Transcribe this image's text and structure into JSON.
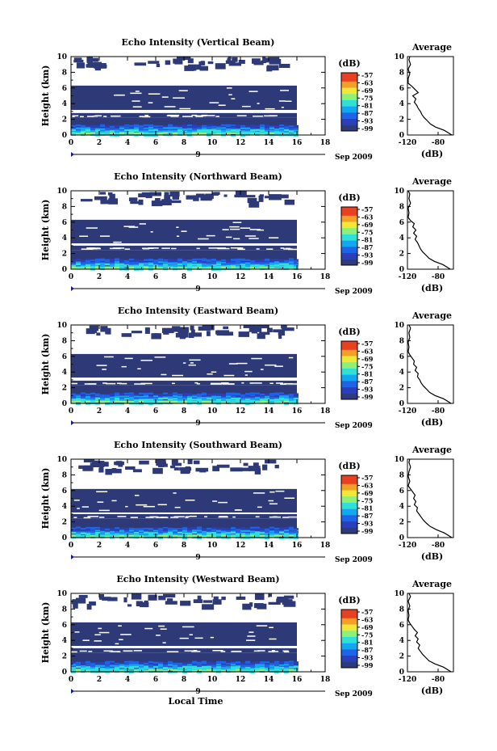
{
  "chart_data": [
    {
      "type": "heatmap",
      "title": "Echo Intensity (Vertical Beam)",
      "ylabel": "Height (km)",
      "xlim": [
        0,
        18
      ],
      "ylim": [
        0,
        10
      ],
      "xticks": [
        0,
        2,
        4,
        6,
        8,
        10,
        12,
        14,
        16,
        18
      ],
      "yticks": [
        0,
        2,
        4,
        6,
        8,
        10
      ],
      "date_label": "Sep 2009",
      "date_day": "9",
      "data_end_hour": 16,
      "colorbar": {
        "unit": "(dB)",
        "ticks": [
          -57,
          -63,
          -69,
          -75,
          -81,
          -87,
          -93,
          -99
        ]
      },
      "layers": [
        {
          "from_km": 0,
          "to_km": 2.2,
          "level": "strong"
        },
        {
          "from_km": 2.2,
          "to_km": 2.8,
          "level": "weak"
        },
        {
          "from_km": 3.2,
          "to_km": 6.3,
          "level": "weak"
        },
        {
          "from_km": 8.3,
          "to_km": 10,
          "level": "sparse"
        }
      ],
      "average": {
        "title": "Average",
        "xlabel": "(dB)",
        "xlim": [
          -120,
          -60
        ],
        "xticks": [
          -120,
          -80
        ],
        "profile": [
          [
            -62,
            0.0
          ],
          [
            -72,
            0.6
          ],
          [
            -83,
            1.0
          ],
          [
            -90,
            1.4
          ],
          [
            -94,
            1.8
          ],
          [
            -98,
            2.2
          ],
          [
            -101,
            2.6
          ],
          [
            -103,
            3.0
          ],
          [
            -106,
            3.4
          ],
          [
            -108,
            3.8
          ],
          [
            -111,
            4.2
          ],
          [
            -109,
            4.6
          ],
          [
            -113,
            5.0
          ],
          [
            -106,
            5.4
          ],
          [
            -110,
            5.8
          ],
          [
            -114,
            6.2
          ],
          [
            -119,
            6.6
          ],
          [
            -119,
            7.2
          ],
          [
            -117,
            7.8
          ],
          [
            -119,
            8.4
          ],
          [
            -116,
            9.0
          ],
          [
            -118,
            9.6
          ],
          [
            -117,
            10.0
          ]
        ]
      }
    },
    {
      "type": "heatmap",
      "title": "Echo Intensity (Northward Beam)",
      "ylabel": "Height (km)",
      "xlim": [
        0,
        18
      ],
      "ylim": [
        0,
        10
      ],
      "xticks": [
        0,
        2,
        4,
        6,
        8,
        10,
        12,
        14,
        16,
        18
      ],
      "yticks": [
        0,
        2,
        4,
        6,
        8,
        10
      ],
      "date_label": "Sep 2009",
      "date_day": "9",
      "data_end_hour": 16,
      "colorbar": {
        "unit": "(dB)",
        "ticks": [
          -57,
          -63,
          -69,
          -75,
          -81,
          -87,
          -93,
          -99
        ]
      },
      "layers": [
        {
          "from_km": 0,
          "to_km": 2.4,
          "level": "strong"
        },
        {
          "from_km": 2.4,
          "to_km": 3.0,
          "level": "weak"
        },
        {
          "from_km": 3.3,
          "to_km": 6.3,
          "level": "weak"
        },
        {
          "from_km": 8.2,
          "to_km": 10,
          "level": "sparse"
        }
      ],
      "average": {
        "title": "Average",
        "xlabel": "(dB)",
        "xlim": [
          -120,
          -60
        ],
        "xticks": [
          -120,
          -80
        ],
        "profile": [
          [
            -64,
            0.0
          ],
          [
            -74,
            0.6
          ],
          [
            -85,
            1.0
          ],
          [
            -92,
            1.4
          ],
          [
            -96,
            1.8
          ],
          [
            -100,
            2.2
          ],
          [
            -103,
            2.6
          ],
          [
            -105,
            3.0
          ],
          [
            -107,
            3.4
          ],
          [
            -110,
            3.8
          ],
          [
            -108,
            4.2
          ],
          [
            -112,
            4.6
          ],
          [
            -109,
            5.0
          ],
          [
            -113,
            5.4
          ],
          [
            -111,
            5.8
          ],
          [
            -116,
            6.2
          ],
          [
            -119,
            6.6
          ],
          [
            -118,
            7.2
          ],
          [
            -119,
            7.8
          ],
          [
            -116,
            8.4
          ],
          [
            -118,
            9.0
          ],
          [
            -117,
            9.6
          ],
          [
            -119,
            10.0
          ]
        ]
      }
    },
    {
      "type": "heatmap",
      "title": "Echo Intensity (Eastward Beam)",
      "ylabel": "Height (km)",
      "xlim": [
        0,
        18
      ],
      "ylim": [
        0,
        10
      ],
      "xticks": [
        0,
        2,
        4,
        6,
        8,
        10,
        12,
        14,
        16,
        18
      ],
      "yticks": [
        0,
        2,
        4,
        6,
        8,
        10
      ],
      "date_label": "Sep 2009",
      "date_day": "9",
      "data_end_hour": 16,
      "colorbar": {
        "unit": "(dB)",
        "ticks": [
          -57,
          -63,
          -69,
          -75,
          -81,
          -87,
          -93,
          -99
        ]
      },
      "layers": [
        {
          "from_km": 0,
          "to_km": 2.3,
          "level": "strong"
        },
        {
          "from_km": 2.3,
          "to_km": 2.9,
          "level": "weak"
        },
        {
          "from_km": 3.3,
          "to_km": 6.3,
          "level": "weak"
        },
        {
          "from_km": 8.5,
          "to_km": 10,
          "level": "sparse"
        }
      ],
      "average": {
        "title": "Average",
        "xlabel": "(dB)",
        "xlim": [
          -120,
          -60
        ],
        "xticks": [
          -120,
          -80
        ],
        "profile": [
          [
            -63,
            0.0
          ],
          [
            -73,
            0.6
          ],
          [
            -84,
            1.0
          ],
          [
            -91,
            1.4
          ],
          [
            -95,
            1.8
          ],
          [
            -99,
            2.2
          ],
          [
            -102,
            2.6
          ],
          [
            -104,
            3.0
          ],
          [
            -107,
            3.4
          ],
          [
            -106,
            3.8
          ],
          [
            -110,
            4.2
          ],
          [
            -108,
            4.6
          ],
          [
            -112,
            5.0
          ],
          [
            -111,
            5.4
          ],
          [
            -114,
            5.8
          ],
          [
            -117,
            6.2
          ],
          [
            -119,
            6.6
          ],
          [
            -118,
            7.2
          ],
          [
            -119,
            7.8
          ],
          [
            -117,
            8.4
          ],
          [
            -118,
            9.0
          ],
          [
            -116,
            9.6
          ],
          [
            -118,
            10.0
          ]
        ]
      }
    },
    {
      "type": "heatmap",
      "title": "Echo Intensity (Southward Beam)",
      "ylabel": "Height (km)",
      "xlim": [
        0,
        18
      ],
      "ylim": [
        0,
        10
      ],
      "xticks": [
        0,
        2,
        4,
        6,
        8,
        10,
        12,
        14,
        16,
        18
      ],
      "yticks": [
        0,
        2,
        4,
        6,
        8,
        10
      ],
      "date_label": "Sep 2009",
      "date_day": "9",
      "data_end_hour": 16,
      "colorbar": {
        "unit": "(dB)",
        "ticks": [
          -57,
          -63,
          -69,
          -75,
          -81,
          -87,
          -93,
          -99
        ]
      },
      "layers": [
        {
          "from_km": 0,
          "to_km": 2.4,
          "level": "strong"
        },
        {
          "from_km": 2.4,
          "to_km": 3.0,
          "level": "weak"
        },
        {
          "from_km": 3.2,
          "to_km": 6.2,
          "level": "weak"
        },
        {
          "from_km": 8.3,
          "to_km": 10,
          "level": "sparse"
        }
      ],
      "average": {
        "title": "Average",
        "xlabel": "(dB)",
        "xlim": [
          -120,
          -60
        ],
        "xticks": [
          -120,
          -80
        ],
        "profile": [
          [
            -62,
            0.0
          ],
          [
            -72,
            0.6
          ],
          [
            -82,
            1.0
          ],
          [
            -90,
            1.4
          ],
          [
            -95,
            1.8
          ],
          [
            -99,
            2.2
          ],
          [
            -102,
            2.6
          ],
          [
            -105,
            3.0
          ],
          [
            -108,
            3.4
          ],
          [
            -107,
            3.8
          ],
          [
            -111,
            4.2
          ],
          [
            -109,
            4.6
          ],
          [
            -112,
            5.0
          ],
          [
            -110,
            5.4
          ],
          [
            -113,
            5.8
          ],
          [
            -116,
            6.2
          ],
          [
            -119,
            6.6
          ],
          [
            -117,
            7.2
          ],
          [
            -119,
            7.8
          ],
          [
            -118,
            8.4
          ],
          [
            -116,
            9.0
          ],
          [
            -118,
            9.6
          ],
          [
            -117,
            10.0
          ]
        ]
      }
    },
    {
      "type": "heatmap",
      "title": "Echo Intensity (Westward Beam)",
      "ylabel": "Height (km)",
      "xlabel": "Local Time",
      "xlim": [
        0,
        18
      ],
      "ylim": [
        0,
        10
      ],
      "xticks": [
        0,
        2,
        4,
        6,
        8,
        10,
        12,
        14,
        16,
        18
      ],
      "yticks": [
        0,
        2,
        4,
        6,
        8,
        10
      ],
      "date_label": "Sep 2009",
      "date_day": "9",
      "data_end_hour": 16,
      "colorbar": {
        "unit": "(dB)",
        "ticks": [
          -57,
          -63,
          -69,
          -75,
          -81,
          -87,
          -93,
          -99
        ]
      },
      "layers": [
        {
          "from_km": 0,
          "to_km": 2.4,
          "level": "strong"
        },
        {
          "from_km": 2.4,
          "to_km": 3.0,
          "level": "weak"
        },
        {
          "from_km": 3.3,
          "to_km": 6.3,
          "level": "weak"
        },
        {
          "from_km": 8.2,
          "to_km": 10,
          "level": "sparse"
        }
      ],
      "average": {
        "title": "Average",
        "xlabel": "(dB)",
        "xlim": [
          -120,
          -60
        ],
        "xticks": [
          -120,
          -80
        ],
        "profile": [
          [
            -63,
            0.0
          ],
          [
            -73,
            0.6
          ],
          [
            -84,
            1.0
          ],
          [
            -92,
            1.4
          ],
          [
            -96,
            1.8
          ],
          [
            -100,
            2.2
          ],
          [
            -103,
            2.6
          ],
          [
            -106,
            3.0
          ],
          [
            -104,
            3.4
          ],
          [
            -108,
            3.8
          ],
          [
            -106,
            4.2
          ],
          [
            -110,
            4.6
          ],
          [
            -107,
            5.0
          ],
          [
            -111,
            5.4
          ],
          [
            -114,
            5.8
          ],
          [
            -117,
            6.2
          ],
          [
            -119,
            6.6
          ],
          [
            -118,
            7.2
          ],
          [
            -119,
            7.8
          ],
          [
            -117,
            8.4
          ],
          [
            -119,
            9.0
          ],
          [
            -116,
            9.6
          ],
          [
            -118,
            10.0
          ]
        ]
      }
    }
  ],
  "colors": {
    "background": "#2e3a78",
    "colormap": [
      "#303b7a",
      "#2a3fb8",
      "#1f63e6",
      "#14a6f0",
      "#2fe0d8",
      "#8cf07a",
      "#f0e838",
      "#f4a028",
      "#e84020"
    ]
  }
}
